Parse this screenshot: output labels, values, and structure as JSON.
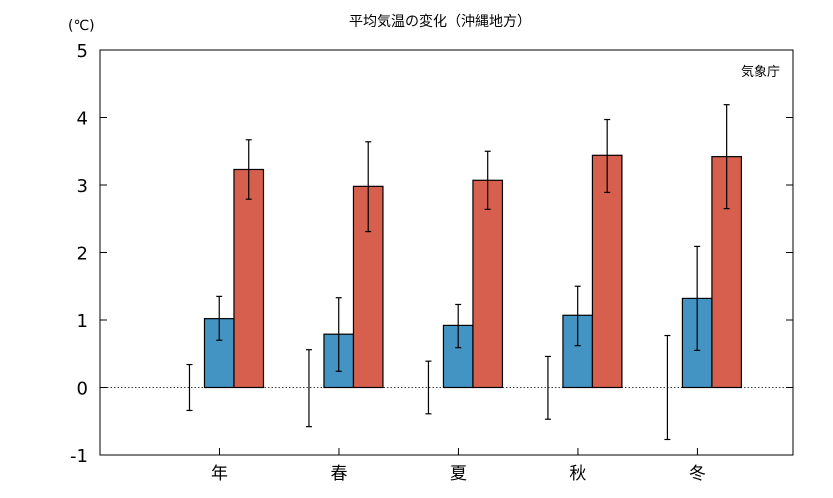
{
  "chart_data": {
    "type": "bar",
    "title": "平均気温の変化（沖縄地方）",
    "ylabel": "(℃)",
    "annotation": "気象庁",
    "categories": [
      "年",
      "春",
      "夏",
      "秋",
      "冬"
    ],
    "ylim": [
      -1,
      5
    ],
    "yticks": [
      -1,
      0,
      1,
      2,
      3,
      4,
      5
    ],
    "grid": false,
    "zero_line": "dotted",
    "zero_error_bars": [
      {
        "high": 0.34,
        "low": -0.34
      },
      {
        "high": 0.56,
        "low": -0.58
      },
      {
        "high": 0.39,
        "low": -0.39
      },
      {
        "high": 0.46,
        "low": -0.47
      },
      {
        "high": 0.77,
        "low": -0.77
      }
    ],
    "series": [
      {
        "color": "#4393c3",
        "values": [
          1.02,
          0.79,
          0.92,
          1.07,
          1.32
        ],
        "error_high": [
          1.35,
          1.33,
          1.23,
          1.5,
          2.09
        ],
        "error_low": [
          0.7,
          0.24,
          0.59,
          0.62,
          0.55
        ]
      },
      {
        "color": "#d6604d",
        "values": [
          3.23,
          2.98,
          3.07,
          3.44,
          3.42
        ],
        "error_high": [
          3.67,
          3.64,
          3.5,
          3.97,
          4.19
        ],
        "error_low": [
          2.79,
          2.31,
          2.64,
          2.89,
          2.65
        ]
      }
    ]
  }
}
